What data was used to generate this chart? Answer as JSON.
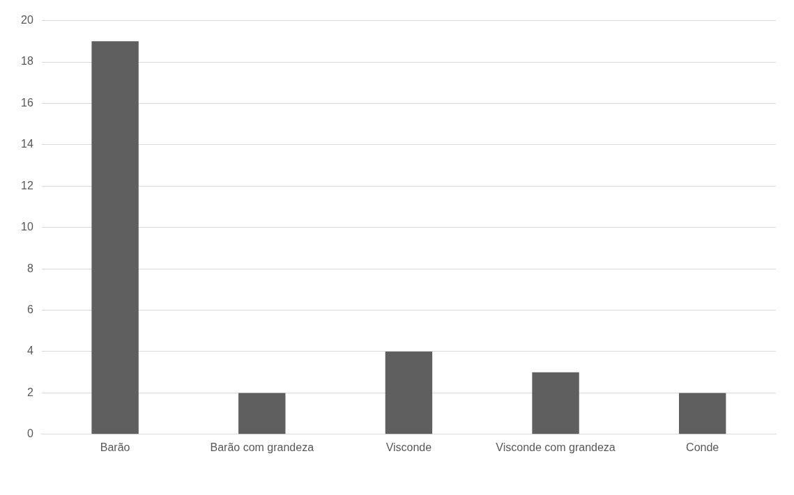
{
  "chart_data": {
    "type": "bar",
    "categories": [
      "Barão",
      "Barão com grandeza",
      "Visconde",
      "Visconde com grandeza",
      "Conde"
    ],
    "values": [
      19,
      2,
      4,
      3,
      2
    ],
    "color": "#5f5f5f",
    "ylim": [
      0,
      20
    ],
    "yticks": [
      0,
      2,
      4,
      6,
      8,
      10,
      12,
      14,
      16,
      18,
      20
    ],
    "grid": "y",
    "legend": false
  }
}
